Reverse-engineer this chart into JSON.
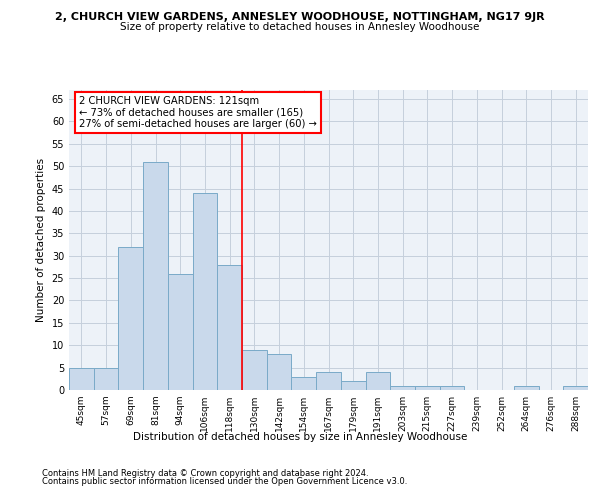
{
  "title_main": "2, CHURCH VIEW GARDENS, ANNESLEY WOODHOUSE, NOTTINGHAM, NG17 9JR",
  "title_sub": "Size of property relative to detached houses in Annesley Woodhouse",
  "xlabel": "Distribution of detached houses by size in Annesley Woodhouse",
  "ylabel": "Number of detached properties",
  "categories": [
    "45sqm",
    "57sqm",
    "69sqm",
    "81sqm",
    "94sqm",
    "106sqm",
    "118sqm",
    "130sqm",
    "142sqm",
    "154sqm",
    "167sqm",
    "179sqm",
    "191sqm",
    "203sqm",
    "215sqm",
    "227sqm",
    "239sqm",
    "252sqm",
    "264sqm",
    "276sqm",
    "288sqm"
  ],
  "values": [
    5,
    5,
    32,
    51,
    26,
    44,
    28,
    9,
    8,
    3,
    4,
    2,
    4,
    1,
    1,
    1,
    0,
    0,
    1,
    0,
    1
  ],
  "bar_color": "#c9d9eb",
  "bar_edge_color": "#7aaac8",
  "vline_x_index": 6.5,
  "vline_color": "red",
  "annotation_text": "2 CHURCH VIEW GARDENS: 121sqm\n← 73% of detached houses are smaller (165)\n27% of semi-detached houses are larger (60) →",
  "annotation_box_color": "white",
  "annotation_box_edge_color": "red",
  "ylim": [
    0,
    67
  ],
  "yticks": [
    0,
    5,
    10,
    15,
    20,
    25,
    30,
    35,
    40,
    45,
    50,
    55,
    60,
    65
  ],
  "footnote1": "Contains HM Land Registry data © Crown copyright and database right 2024.",
  "footnote2": "Contains public sector information licensed under the Open Government Licence v3.0.",
  "plot_bg_color": "#edf2f8",
  "grid_color": "#c5cfdc"
}
